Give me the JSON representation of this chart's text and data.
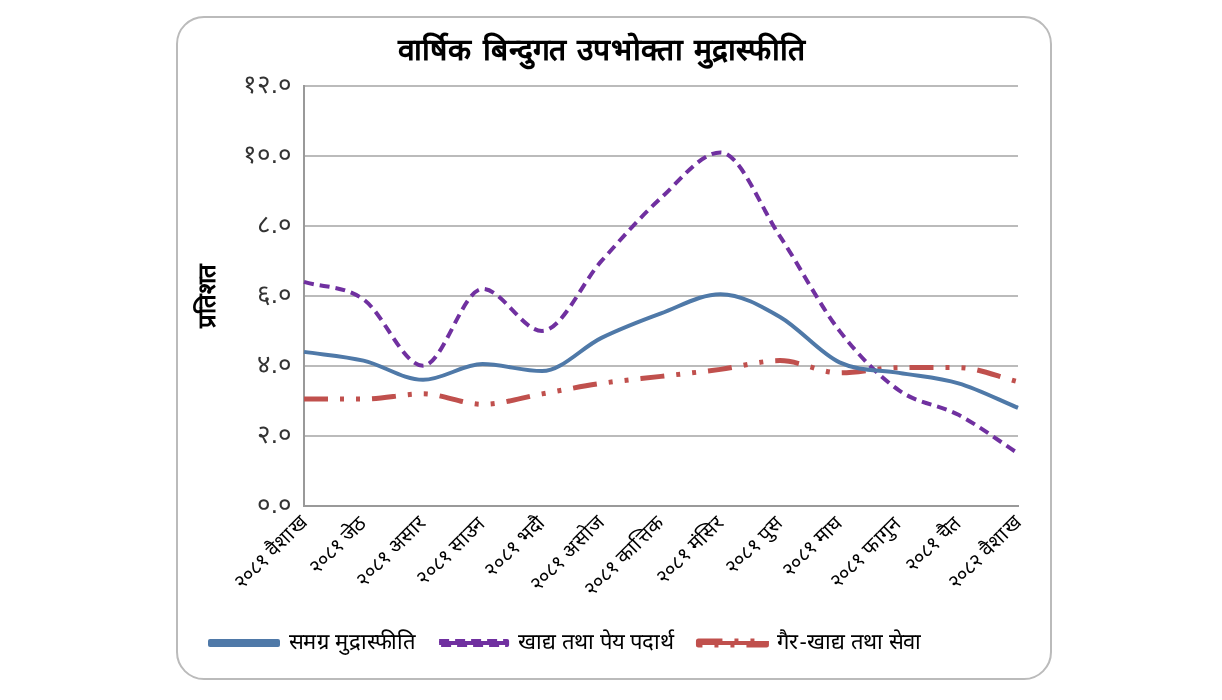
{
  "chart_data": {
    "type": "line",
    "title": "वार्षिक बिन्दुगत उपभोक्ता मुद्रास्फीति",
    "ylabel": "प्रतिशत",
    "categories": [
      "२०८१ वैशाख",
      "२०८१ जेठ",
      "२०८१ असार",
      "२०८१ साउन",
      "२०८१ भदौ",
      "२०८१ असोज",
      "२०८१ कात्तिक",
      "२०८१ मंसिर",
      "२०८१ पुस",
      "२०८१ माघ",
      "२०८१ फागुन",
      "२०८१ चैत",
      "२०८२ वैशाख"
    ],
    "series": [
      {
        "name": "समग्र मुद्रास्फीति",
        "color": "#4f79a8",
        "line_style": "solid",
        "values": [
          4.4,
          4.15,
          3.6,
          4.05,
          3.85,
          4.8,
          5.5,
          6.05,
          5.4,
          4.1,
          3.8,
          3.5,
          2.8
        ]
      },
      {
        "name": "खाद्य तथा पेय पदार्थ",
        "color": "#7030a0",
        "line_style": "dashed",
        "values": [
          6.4,
          5.9,
          4.0,
          6.2,
          5.0,
          7.0,
          8.8,
          10.1,
          7.7,
          5.0,
          3.3,
          2.6,
          1.5
        ]
      },
      {
        "name": "गैर-खाद्य तथा सेवा",
        "color": "#c0504d",
        "line_style": "dotted",
        "values": [
          3.05,
          3.05,
          3.2,
          2.9,
          3.2,
          3.5,
          3.7,
          3.9,
          4.15,
          3.8,
          3.95,
          3.95,
          3.55
        ]
      }
    ],
    "ylim": [
      0,
      12
    ],
    "yticks": [
      {
        "value": 0,
        "label": "०.०"
      },
      {
        "value": 2,
        "label": "२.०"
      },
      {
        "value": 4,
        "label": "४.०"
      },
      {
        "value": 6,
        "label": "६.०"
      },
      {
        "value": 8,
        "label": "८.०"
      },
      {
        "value": 10,
        "label": "१०.०"
      },
      {
        "value": 12,
        "label": "१२.०"
      }
    ],
    "grid": "y",
    "legend": "bottom",
    "marker": "none"
  }
}
